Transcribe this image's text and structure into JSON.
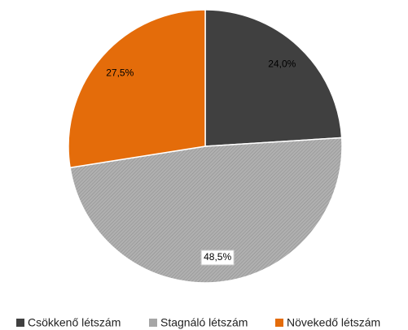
{
  "chart_data": {
    "type": "pie",
    "categories": [
      "Csökkenő létszám",
      "Stagnáló létszám",
      "Növekedő létszám"
    ],
    "values": [
      24.0,
      48.5,
      27.5
    ],
    "value_labels": [
      "24,0%",
      "48,5%",
      "27,5%"
    ],
    "colors": [
      "#404040",
      "#a6a6a6",
      "#e46c0a"
    ],
    "legend": "bottom"
  }
}
